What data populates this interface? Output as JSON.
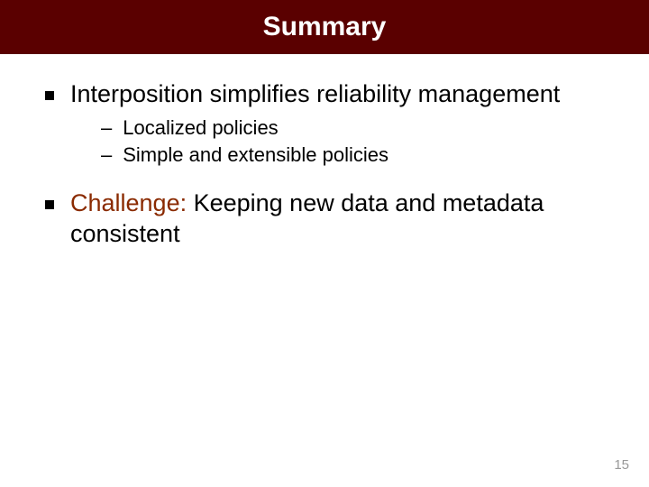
{
  "header": {
    "title": "Summary",
    "background_color": "#5a0000",
    "title_color": "#ffffff",
    "title_fontsize": 30,
    "title_fontweight": "bold"
  },
  "body": {
    "background_color": "#ffffff",
    "bullets": [
      {
        "text": "Interposition simplifies reliability management",
        "sub_bullets": [
          {
            "text": "Localized policies"
          },
          {
            "text": "Simple and extensible policies"
          }
        ]
      },
      {
        "prefix_word": "Challenge:",
        "prefix_color": "#8a2a00",
        "rest": " Keeping new data and metadata consistent"
      }
    ],
    "main_fontsize": 27,
    "sub_fontsize": 22,
    "square_color": "#000000",
    "text_color": "#000000"
  },
  "footer": {
    "page_number": "15",
    "color": "#999999",
    "fontsize": 15
  }
}
